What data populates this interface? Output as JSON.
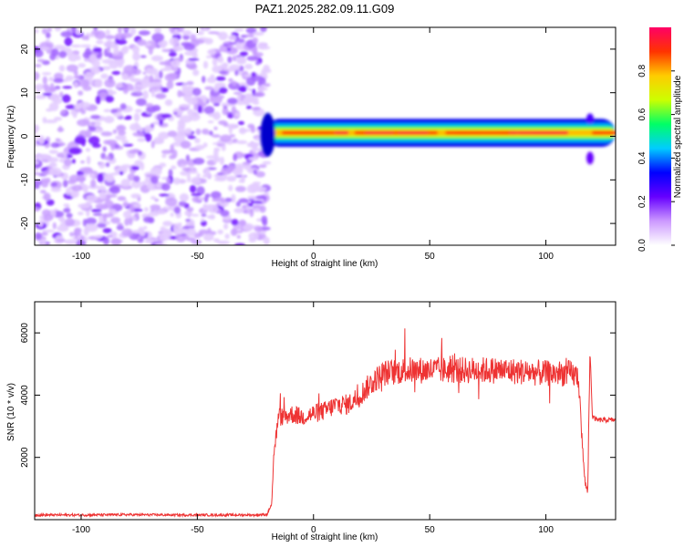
{
  "title": "PAZ1.2025.282.09.11.G09",
  "chart_data": [
    {
      "type": "heatmap",
      "name": "spectrogram",
      "xlabel": "Height of straight line (km)",
      "ylabel": "Frequency (Hz)",
      "xlim": [
        -120,
        130
      ],
      "ylim": [
        -25,
        25
      ],
      "xticks": [
        -100,
        -50,
        0,
        50,
        100
      ],
      "yticks": [
        -20,
        -10,
        0,
        10,
        20
      ],
      "noise_region_x": [
        -120,
        -20
      ],
      "signal_start_x": -22,
      "signal_center_freq": 0.8,
      "signal_bandwidth": 2.0,
      "secondary_feature_x": 119,
      "secondary_feature_freq": [
        -5,
        4
      ],
      "colorbar": {
        "label": "Normalized spectral amplitude",
        "range": [
          0.0,
          1.0
        ],
        "ticks": [
          0.0,
          0.2,
          0.4,
          0.6,
          0.8
        ],
        "tick_labels": [
          "0.0",
          "0.2",
          "0.4",
          "0.6",
          "0.8"
        ],
        "colors": [
          "#ffffff",
          "#cc99ff",
          "#6600ff",
          "#0000ff",
          "#00ccff",
          "#00ff66",
          "#ccff00",
          "#ffcc00",
          "#ff3300",
          "#ff0066"
        ]
      }
    },
    {
      "type": "line",
      "name": "snr",
      "xlabel": "Height of straight line (km)",
      "ylabel": "SNR (10 * v/v)",
      "xlim": [
        -120,
        130
      ],
      "ylim": [
        0,
        7000
      ],
      "xticks": [
        -100,
        -50,
        0,
        50,
        100
      ],
      "yticks": [
        2000,
        4000,
        6000
      ],
      "color": "#ee3333",
      "series": [
        {
          "name": "SNR",
          "x": [
            -120,
            -100,
            -80,
            -60,
            -40,
            -25,
            -20,
            -18,
            -17,
            -15,
            -12,
            -10,
            -5,
            0,
            5,
            10,
            15,
            20,
            25,
            30,
            40,
            50,
            60,
            70,
            80,
            90,
            100,
            110,
            114,
            116,
            117,
            118,
            119,
            120,
            122,
            125,
            130
          ],
          "values": [
            150,
            150,
            160,
            150,
            150,
            150,
            170,
            500,
            2200,
            3300,
            3300,
            3400,
            3300,
            3400,
            3500,
            3700,
            3700,
            4000,
            4400,
            4700,
            4800,
            4800,
            4800,
            4800,
            4800,
            4750,
            4700,
            4700,
            4600,
            2000,
            1100,
            900,
            5500,
            3300,
            3200,
            3200,
            3200
          ]
        }
      ]
    }
  ]
}
